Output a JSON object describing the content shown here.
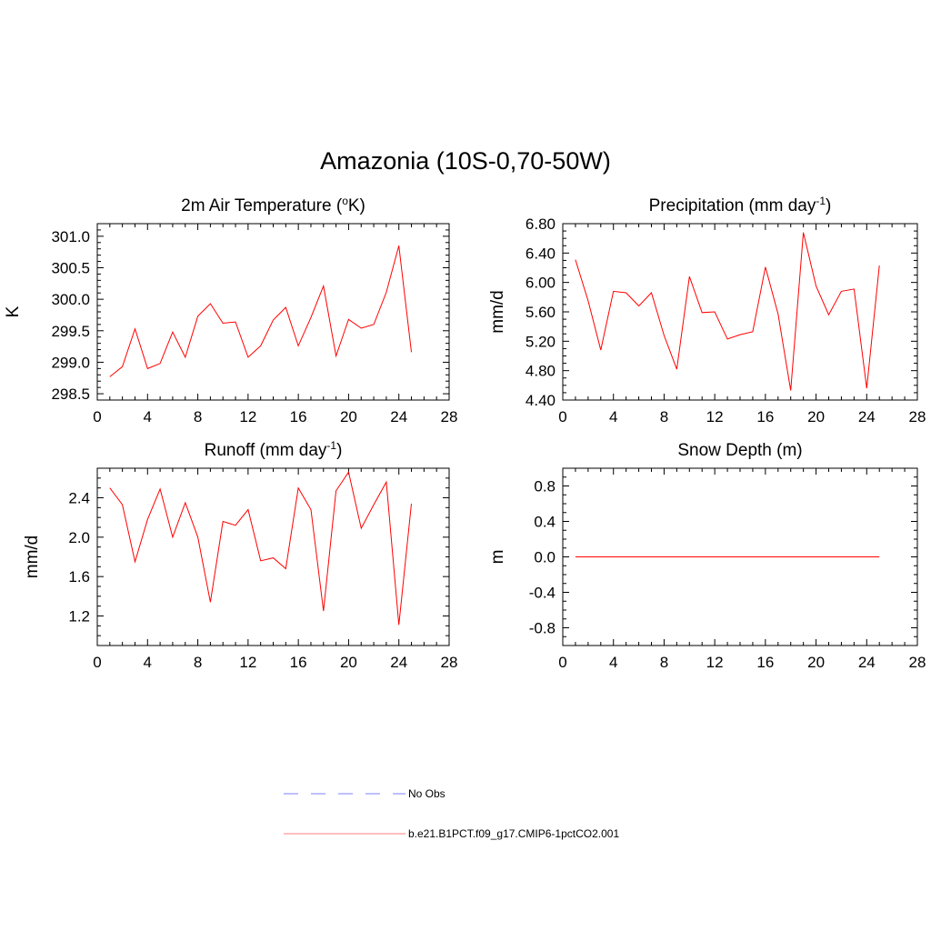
{
  "title": "Amazonia (10S-0,70-50W)",
  "colors": {
    "model": "#ff0000",
    "obs": "#9999ff",
    "axis": "#000000"
  },
  "legend": {
    "entries": [
      {
        "label": "No Obs",
        "color": "#9999ff",
        "style": "dashed"
      },
      {
        "label": "b.e21.B1PCT.f09_g17.CMIP6-1pctCO2.001",
        "color": "#ff9999",
        "style": "solid"
      }
    ]
  },
  "chart_data": [
    {
      "type": "line",
      "title": "2m Air Temperature (",
      "title_sup": "o",
      "title_tail": "K)",
      "ylabel": "K",
      "xlim": [
        0,
        28
      ],
      "ylim": [
        298.4,
        301.2
      ],
      "xticks": [
        "0",
        "4",
        "8",
        "12",
        "16",
        "20",
        "24",
        "28"
      ],
      "yticks": [
        "298.5",
        "299.0",
        "299.5",
        "300.0",
        "300.5",
        "301.0"
      ],
      "ytick_values": [
        298.5,
        299.0,
        299.5,
        300.0,
        300.5,
        301.0
      ],
      "x": [
        1,
        2,
        3,
        4,
        5,
        6,
        7,
        8,
        9,
        10,
        11,
        12,
        13,
        14,
        15,
        16,
        17,
        18,
        19,
        20,
        21,
        22,
        23,
        24,
        25
      ],
      "series": [
        {
          "values": [
            298.77,
            298.93,
            299.53,
            298.9,
            298.98,
            299.48,
            299.08,
            299.73,
            299.93,
            299.62,
            299.64,
            299.08,
            299.26,
            299.67,
            299.87,
            299.26,
            299.71,
            300.21,
            299.1,
            299.68,
            299.54,
            299.6,
            300.11,
            300.85,
            299.16
          ]
        }
      ]
    },
    {
      "type": "line",
      "title": "Precipitation (mm day",
      "title_sup": "-1",
      "title_tail": ")",
      "ylabel": "mm/d",
      "xlim": [
        0,
        28
      ],
      "ylim": [
        4.4,
        6.8
      ],
      "xticks": [
        "0",
        "4",
        "8",
        "12",
        "16",
        "20",
        "24",
        "28"
      ],
      "yticks": [
        "4.40",
        "4.80",
        "5.20",
        "5.60",
        "6.00",
        "6.40",
        "6.80"
      ],
      "ytick_values": [
        4.4,
        4.8,
        5.2,
        5.6,
        6.0,
        6.4,
        6.8
      ],
      "x": [
        1,
        2,
        3,
        4,
        5,
        6,
        7,
        8,
        9,
        10,
        11,
        12,
        13,
        14,
        15,
        16,
        17,
        18,
        19,
        20,
        21,
        22,
        23,
        24,
        25
      ],
      "series": [
        {
          "values": [
            6.31,
            5.75,
            5.08,
            5.88,
            5.86,
            5.68,
            5.86,
            5.28,
            4.82,
            6.08,
            5.59,
            5.6,
            5.23,
            5.29,
            5.33,
            6.21,
            5.57,
            4.53,
            6.68,
            5.95,
            5.56,
            5.88,
            5.91,
            4.56,
            6.23
          ]
        }
      ]
    },
    {
      "type": "line",
      "title": "Runoff (mm day",
      "title_sup": "-1",
      "title_tail": ")",
      "ylabel": "mm/d",
      "xlim": [
        0,
        28
      ],
      "ylim": [
        0.9,
        2.7
      ],
      "xticks": [
        "0",
        "4",
        "8",
        "12",
        "16",
        "20",
        "24",
        "28"
      ],
      "yticks": [
        "1.2",
        "1.6",
        "2.0",
        "2.4"
      ],
      "ytick_values": [
        1.2,
        1.6,
        2.0,
        2.4
      ],
      "x": [
        1,
        2,
        3,
        4,
        5,
        6,
        7,
        8,
        9,
        10,
        11,
        12,
        13,
        14,
        15,
        16,
        17,
        18,
        19,
        20,
        21,
        22,
        23,
        24,
        25
      ],
      "series": [
        {
          "values": [
            2.5,
            2.33,
            1.75,
            2.18,
            2.49,
            2.0,
            2.35,
            2.0,
            1.34,
            2.16,
            2.12,
            2.28,
            1.76,
            1.79,
            1.68,
            2.5,
            2.28,
            1.25,
            2.47,
            2.66,
            2.09,
            2.33,
            2.56,
            1.11,
            2.34
          ]
        }
      ]
    },
    {
      "type": "line",
      "title": "Snow Depth (m)",
      "title_sup": "",
      "title_tail": "",
      "ylabel": "m",
      "xlim": [
        0,
        28
      ],
      "ylim": [
        -1.0,
        1.0
      ],
      "xticks": [
        "0",
        "4",
        "8",
        "12",
        "16",
        "20",
        "24",
        "28"
      ],
      "yticks": [
        "-0.8",
        "-0.4",
        "0.0",
        "0.4",
        "0.8"
      ],
      "ytick_values": [
        -0.8,
        -0.4,
        0.0,
        0.4,
        0.8
      ],
      "x": [
        1,
        2,
        3,
        4,
        5,
        6,
        7,
        8,
        9,
        10,
        11,
        12,
        13,
        14,
        15,
        16,
        17,
        18,
        19,
        20,
        21,
        22,
        23,
        24,
        25
      ],
      "series": [
        {
          "values": [
            0,
            0,
            0,
            0,
            0,
            0,
            0,
            0,
            0,
            0,
            0,
            0,
            0,
            0,
            0,
            0,
            0,
            0,
            0,
            0,
            0,
            0,
            0,
            0,
            0
          ]
        }
      ]
    }
  ]
}
